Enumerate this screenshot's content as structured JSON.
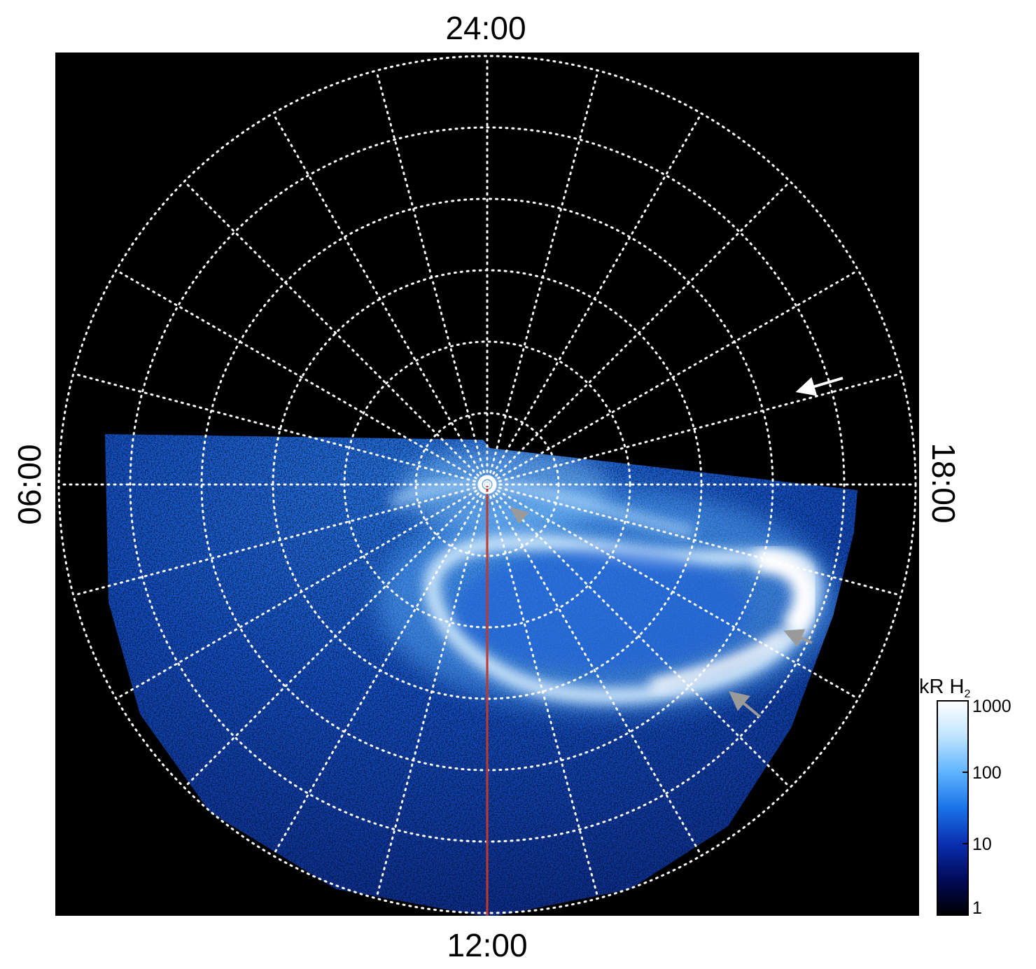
{
  "figure": {
    "local_time_labels": {
      "top": "24:00",
      "bottom": "12:00",
      "left": "06:00",
      "right": "18:00"
    },
    "colorbar": {
      "title_main": "kR H",
      "title_subscript": "2",
      "ticks": [
        {
          "label": "1000",
          "value": 1000
        },
        {
          "label": "100",
          "value": 100
        },
        {
          "label": "10",
          "value": 10
        },
        {
          "label": "1",
          "value": 1
        }
      ],
      "scale": "log",
      "range": [
        1,
        1000
      ],
      "colors": [
        "#000000",
        "#000a5a",
        "#0a2fb0",
        "#1a73e8",
        "#5fb4ff",
        "#bfe4ff",
        "#ffffff"
      ]
    },
    "colors": {
      "background": "#000000",
      "grid": "#ffffff",
      "meridian_line": "#c0392b",
      "arrow_white": "#ffffff",
      "arrow_gray": "#9a9a9a"
    },
    "grid": {
      "style": "dotted",
      "rings": 6,
      "meridians": 24
    },
    "markers": [
      {
        "name": "white-arrow",
        "color": "white"
      },
      {
        "name": "gray-arrowhead-near-pole",
        "color": "gray"
      },
      {
        "name": "gray-arrow-dusk",
        "color": "gray"
      },
      {
        "name": "gray-arrow-lower",
        "color": "gray"
      }
    ]
  }
}
